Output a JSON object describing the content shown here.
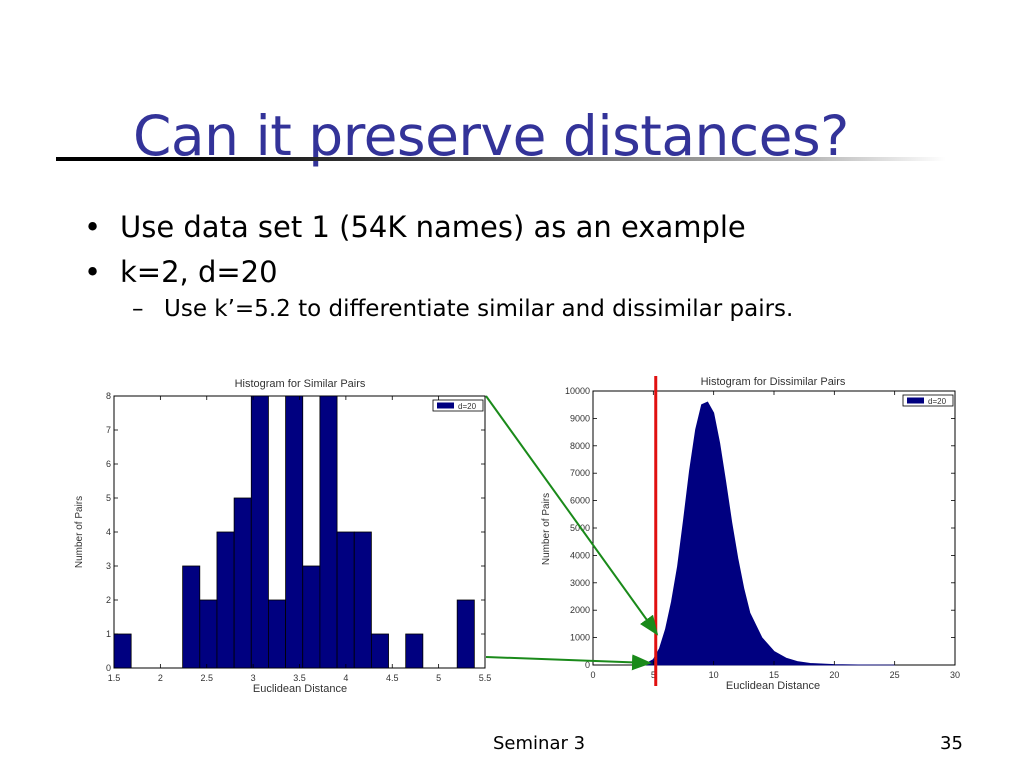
{
  "slide": {
    "title": "Can it preserve distances?",
    "bullets": [
      "Use data set 1 (54K names) as an example",
      "k=2, d=20"
    ],
    "sub_bullet": "Use k’=5.2 to differentiate similar and dissimilar pairs.",
    "footer_center": "Seminar 3",
    "page_number": "35",
    "threshold_value": 5.2
  },
  "colors": {
    "title": "#333399",
    "bars": "#000080",
    "threshold_line": "#e01010",
    "arrows": "#1a8a1a"
  },
  "chart_data": [
    {
      "type": "bar",
      "title": "Histogram for Similar Pairs",
      "xlabel": "Euclidean Distance",
      "ylabel": "Number of Pairs",
      "legend": "d=20",
      "legend_placement": "top-right",
      "xlim": [
        1.5,
        5.5
      ],
      "ylim": [
        0,
        8
      ],
      "xticks": [
        1.5,
        2,
        2.5,
        3,
        3.5,
        4,
        4.5,
        5,
        5.5
      ],
      "xtick_labels": [
        "1.5",
        "2",
        "2.5",
        "3",
        "3.5",
        "4",
        "4.5",
        "5",
        "5.5"
      ],
      "yticks": [
        0,
        1,
        2,
        3,
        4,
        5,
        6,
        7,
        8
      ],
      "ytick_labels": [
        "0",
        "1",
        "2",
        "3",
        "4",
        "5",
        "6",
        "7",
        "8"
      ],
      "bin_width": 0.185,
      "bin_starts": [
        1.5,
        1.685,
        1.87,
        2.055,
        2.24,
        2.425,
        2.61,
        2.795,
        2.98,
        3.165,
        3.35,
        3.535,
        3.72,
        3.905,
        4.09,
        4.275,
        4.46,
        4.645,
        4.83,
        5.015,
        5.2
      ],
      "values": [
        1,
        0,
        0,
        0,
        3,
        2,
        4,
        5,
        8,
        2,
        8,
        3,
        8,
        4,
        4,
        1,
        0,
        1,
        0,
        0,
        2
      ],
      "grid": false
    },
    {
      "type": "area",
      "title": "Histogram for Dissimilar Pairs",
      "xlabel": "Euclidean Distance",
      "ylabel": "Number of Pairs",
      "legend": "d=20",
      "legend_placement": "top-right",
      "xlim": [
        0,
        30
      ],
      "ylim": [
        0,
        10000
      ],
      "xticks": [
        0,
        5,
        10,
        15,
        20,
        25,
        30
      ],
      "xtick_labels": [
        "0",
        "5",
        "10",
        "15",
        "20",
        "25",
        "30"
      ],
      "yticks": [
        0,
        1000,
        2000,
        3000,
        4000,
        5000,
        6000,
        7000,
        8000,
        9000,
        10000
      ],
      "ytick_labels": [
        "0",
        "1000",
        "2000",
        "3000",
        "4000",
        "5000",
        "6000",
        "7000",
        "8000",
        "9000",
        "10000"
      ],
      "x": [
        4.2,
        5.0,
        5.5,
        6.0,
        6.5,
        7.0,
        7.5,
        8.0,
        8.5,
        9.0,
        9.5,
        10.0,
        10.5,
        11.0,
        11.5,
        12.0,
        12.5,
        13.0,
        14.0,
        15.0,
        16.0,
        17.0,
        18.0,
        20.0,
        22.0,
        25.0
      ],
      "y": [
        0,
        200,
        600,
        1300,
        2300,
        3600,
        5300,
        7100,
        8600,
        9500,
        9600,
        9200,
        8100,
        6700,
        5200,
        3900,
        2800,
        1900,
        1000,
        500,
        250,
        120,
        60,
        20,
        5,
        0
      ],
      "grid": false
    }
  ]
}
